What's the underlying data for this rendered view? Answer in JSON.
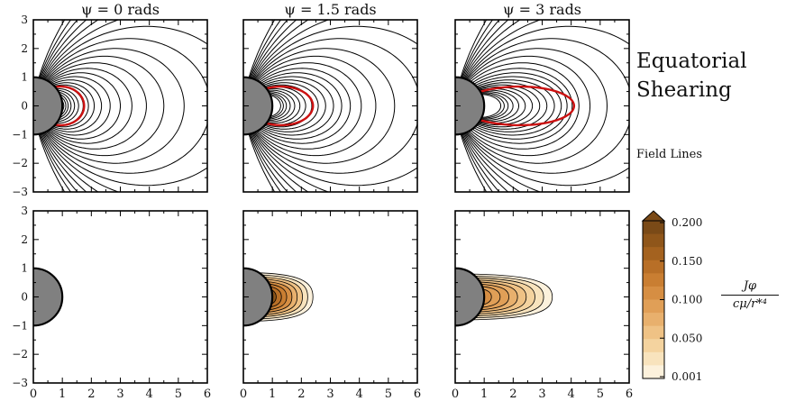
{
  "side": {
    "title_line1": "Equatorial",
    "title_line2": "Shearing",
    "subtitle": "Field Lines"
  },
  "colorbar": {
    "label_num": "Jφ",
    "label_den": "cμ/r*⁴",
    "ticks": [
      "0.200",
      "0.150",
      "0.100",
      "0.050",
      "0.001"
    ],
    "colors": [
      "#7a4a17",
      "#8f561a",
      "#a4621f",
      "#b86f27",
      "#c97e32",
      "#d68e43",
      "#e09f57",
      "#e8b06d",
      "#efc285",
      "#f4d39f",
      "#f8e3bd",
      "#fcf1dc"
    ]
  },
  "chart_data": [
    {
      "type": "contour",
      "title": "ψ = 0 rads",
      "row": "field lines",
      "xlim": [
        0,
        6
      ],
      "ylim": [
        -3,
        3
      ],
      "xticks": [
        "0",
        "1",
        "2",
        "3",
        "4",
        "5",
        "6"
      ],
      "yticks": [
        "3",
        "2",
        "1",
        "0",
        "−1",
        "−2",
        "−3"
      ],
      "highlighted_line_apex_x": 1.75,
      "highlight_color": "#cc1111",
      "star_radius": 1,
      "star_color": "#808080"
    },
    {
      "type": "contour",
      "title": "ψ = 1.5 rads",
      "row": "field lines",
      "xlim": [
        0,
        6
      ],
      "ylim": [
        -3,
        3
      ],
      "xticks": [
        "0",
        "1",
        "2",
        "3",
        "4",
        "5",
        "6"
      ],
      "highlighted_line_apex_x": 2.4,
      "highlight_color": "#cc1111"
    },
    {
      "type": "contour",
      "title": "ψ = 3 rads",
      "row": "field lines",
      "xlim": [
        0,
        6
      ],
      "ylim": [
        -3,
        3
      ],
      "xticks": [
        "0",
        "1",
        "2",
        "3",
        "4",
        "5",
        "6"
      ],
      "highlighted_line_apex_x": 4.1,
      "highlight_color": "#cc1111"
    },
    {
      "type": "heatmap",
      "row": "current",
      "xlim": [
        0,
        6
      ],
      "ylim": [
        -3,
        3
      ],
      "xticks": [
        "0",
        "1",
        "2",
        "3",
        "4",
        "5",
        "6"
      ],
      "yticks": [
        "3",
        "2",
        "1",
        "0",
        "−1",
        "−2",
        "−3"
      ],
      "current_extent_x": 0
    },
    {
      "type": "heatmap",
      "row": "current",
      "xlim": [
        0,
        6
      ],
      "ylim": [
        -3,
        3
      ],
      "xticks": [
        "0",
        "1",
        "2",
        "3",
        "4",
        "5",
        "6"
      ],
      "current_extent_x": 2.4,
      "current_extent_y": 0.85
    },
    {
      "type": "heatmap",
      "row": "current",
      "xlim": [
        0,
        6
      ],
      "ylim": [
        -3,
        3
      ],
      "xticks": [
        "0",
        "1",
        "2",
        "3",
        "4",
        "5",
        "6"
      ],
      "current_extent_x": 3.35,
      "current_extent_y": 0.8
    }
  ]
}
